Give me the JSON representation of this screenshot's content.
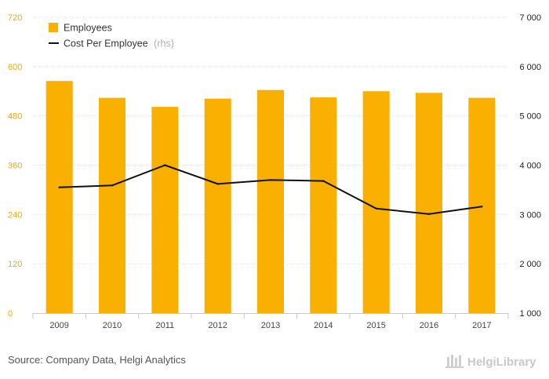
{
  "chart_data": {
    "type": "bar",
    "categories": [
      "2009",
      "2010",
      "2011",
      "2012",
      "2013",
      "2014",
      "2015",
      "2016",
      "2017"
    ],
    "series": [
      {
        "name": "Employees",
        "type": "bar",
        "axis": "left",
        "color": "#f9b000",
        "values": [
          565,
          524,
          502,
          522,
          543,
          525,
          540,
          536,
          524
        ]
      },
      {
        "name": "Cost Per Employee",
        "type": "line",
        "axis": "right",
        "color": "#111111",
        "values": [
          3550,
          3590,
          4000,
          3620,
          3700,
          3680,
          3120,
          3010,
          3160
        ]
      }
    ],
    "y_left": {
      "ticks": [
        "0",
        "120",
        "240",
        "360",
        "480",
        "600",
        "720"
      ],
      "ylim": [
        0,
        720
      ],
      "color": "#f5a800"
    },
    "y_right": {
      "ticks": [
        "1 000",
        "2 000",
        "3 000",
        "4 000",
        "5 000",
        "6 000",
        "7 000"
      ],
      "ylim": [
        1000,
        7000
      ]
    },
    "grid": true,
    "legend": {
      "position": "top-left",
      "items": [
        {
          "label": "Employees",
          "suffix": ""
        },
        {
          "label": "Cost Per Employee",
          "suffix": "(rhs)"
        }
      ]
    }
  },
  "footer": {
    "source": "Source: Company Data, Helgi Analytics",
    "brand": "HelgiLibrary"
  }
}
